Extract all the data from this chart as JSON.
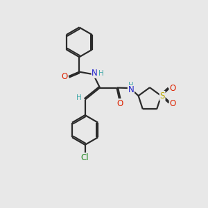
{
  "bg_color": "#e8e8e8",
  "bond_color": "#2a2a2a",
  "bond_width": 1.6,
  "atom_colors": {
    "O": "#dd2200",
    "N": "#2222cc",
    "S": "#bbaa00",
    "Cl": "#228822",
    "H": "#44aaaa",
    "C": "#2a2a2a"
  },
  "font_size": 8.5,
  "font_size_small": 7.5
}
